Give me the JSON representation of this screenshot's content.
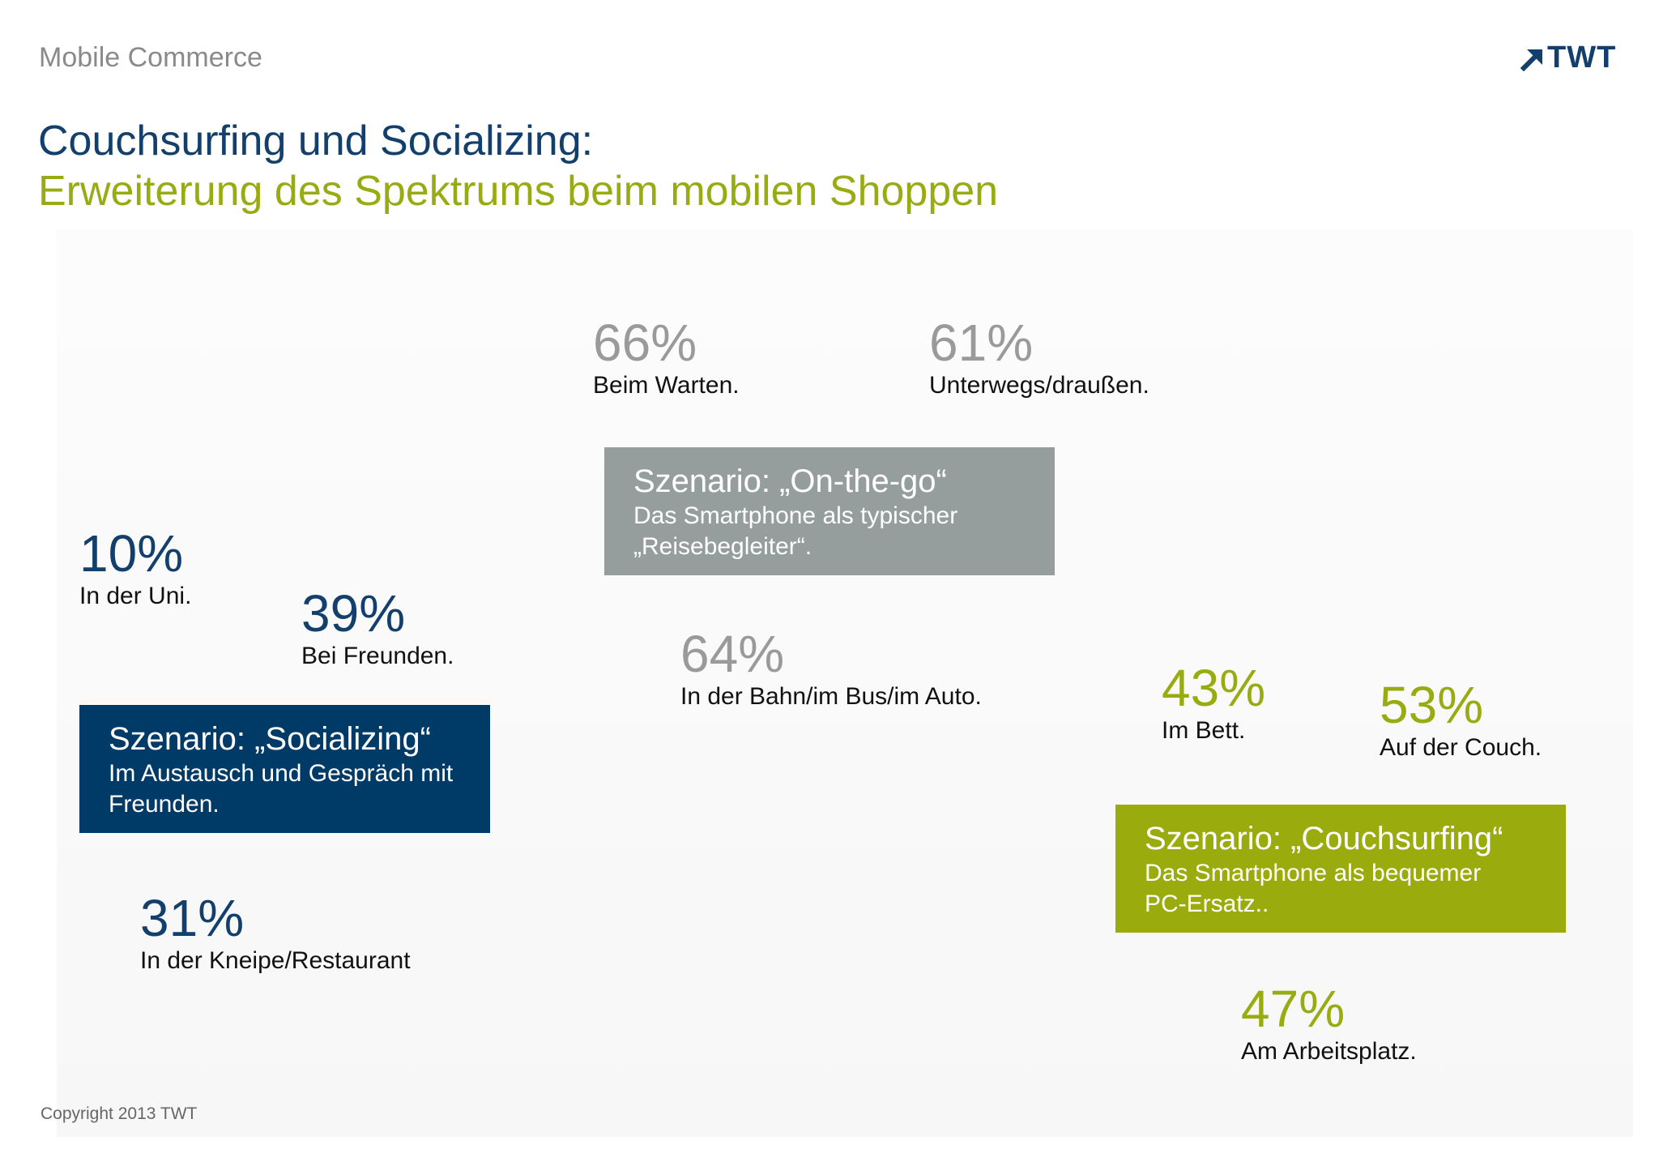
{
  "header": {
    "label": "Mobile Commerce",
    "logo_text": "TWT",
    "logo_icon": "arrow-up-right-icon"
  },
  "title": "Couchsurfing und Socializing:",
  "subtitle": "Erweiterung des Spektrums beim mobilen Shoppen",
  "colors": {
    "navy": "#123f6b",
    "green": "#98ac12",
    "grey": "#9a9a9a",
    "scenario_navy": "#003a66",
    "scenario_grey": "#969e9d",
    "scenario_green": "#9aab0e"
  },
  "scenarios": {
    "socializing": {
      "title": "Szenario: „Socializing“",
      "text": "Im Austausch und Gespräch mit Freunden.",
      "stats": [
        {
          "pct": "10%",
          "label": "In der Uni."
        },
        {
          "pct": "39%",
          "label": "Bei Freunden."
        },
        {
          "pct": "31%",
          "label": "In der Kneipe/Restaurant"
        }
      ]
    },
    "on_the_go": {
      "title": "Szenario: „On-the-go“",
      "text": "Das Smartphone als typischer „Reisebegleiter“.",
      "stats": [
        {
          "pct": "66%",
          "label": "Beim Warten."
        },
        {
          "pct": "61%",
          "label": "Unterwegs/draußen."
        },
        {
          "pct": "64%",
          "label": "In der Bahn/im Bus/im Auto."
        }
      ]
    },
    "couchsurfing": {
      "title": "Szenario: „Couchsurfing“",
      "text": "Das Smartphone als bequemer PC-Ersatz..",
      "stats": [
        {
          "pct": "43%",
          "label": "Im Bett."
        },
        {
          "pct": "53%",
          "label": "Auf der Couch."
        },
        {
          "pct": "47%",
          "label": "Am Arbeitsplatz."
        }
      ]
    }
  },
  "footer": {
    "copyright": "Copyright 2013 TWT"
  }
}
